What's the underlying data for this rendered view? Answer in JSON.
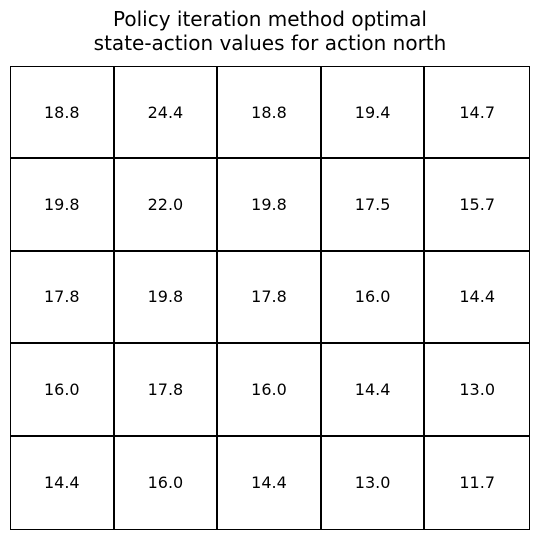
{
  "chart_data": {
    "type": "table",
    "title_lines": [
      "Policy iteration method optimal",
      "state-action values for action north"
    ],
    "rows": [
      [
        "18.8",
        "24.4",
        "18.8",
        "19.4",
        "14.7"
      ],
      [
        "19.8",
        "22.0",
        "19.8",
        "17.5",
        "15.7"
      ],
      [
        "17.8",
        "19.8",
        "17.8",
        "16.0",
        "14.4"
      ],
      [
        "16.0",
        "17.8",
        "16.0",
        "14.4",
        "13.0"
      ],
      [
        "14.4",
        "16.0",
        "14.4",
        "13.0",
        "11.7"
      ]
    ],
    "grid": true,
    "colors": {
      "line": "#000000",
      "background": "#ffffff",
      "text": "#000000"
    }
  }
}
